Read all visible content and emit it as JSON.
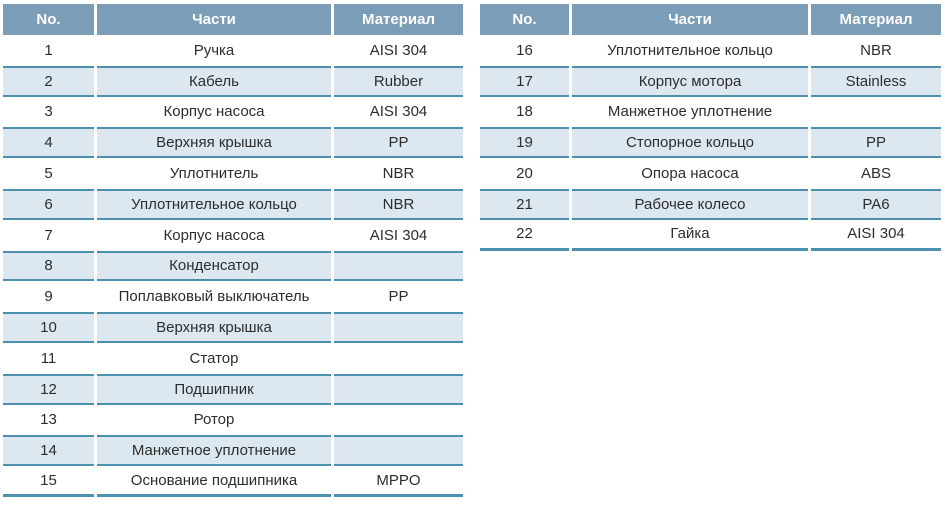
{
  "colors": {
    "header_bg": "#7C9DB8",
    "header_text": "#FFFFFF",
    "row_alt_bg": "#DDE7EF",
    "line": "#4D8FAF",
    "text": "#2D2D2D"
  },
  "tables": [
    {
      "name": "parts-table-left",
      "headers": {
        "no": "No.",
        "part": "Части",
        "material": "Материал"
      },
      "rows": [
        {
          "no": "1",
          "part": "Ручка",
          "material": "AISI 304"
        },
        {
          "no": "2",
          "part": "Кабель",
          "material": "Rubber"
        },
        {
          "no": "3",
          "part": "Корпус насоса",
          "material": "AISI 304"
        },
        {
          "no": "4",
          "part": "Верхняя крышка",
          "material": "PP"
        },
        {
          "no": "5",
          "part": "Уплотнитель",
          "material": "NBR"
        },
        {
          "no": "6",
          "part": "Уплотнительное кольцо",
          "material": "NBR"
        },
        {
          "no": "7",
          "part": "Корпус насоса",
          "material": "AISI 304"
        },
        {
          "no": "8",
          "part": "Конденсатор",
          "material": ""
        },
        {
          "no": "9",
          "part": "Поплавковый выключатель",
          "material": "PP"
        },
        {
          "no": "10",
          "part": "Верхняя крышка",
          "material": ""
        },
        {
          "no": "11",
          "part": "Статор",
          "material": ""
        },
        {
          "no": "12",
          "part": "Подшипник",
          "material": ""
        },
        {
          "no": "13",
          "part": "Ротор",
          "material": ""
        },
        {
          "no": "14",
          "part": "Манжетное уплотнение",
          "material": ""
        },
        {
          "no": "15",
          "part": "Основание подшипника",
          "material": "MPPO"
        }
      ]
    },
    {
      "name": "parts-table-right",
      "headers": {
        "no": "No.",
        "part": "Части",
        "material": "Материал"
      },
      "rows": [
        {
          "no": "16",
          "part": "Уплотнительное кольцо",
          "material": "NBR"
        },
        {
          "no": "17",
          "part": "Корпус мотора",
          "material": "Stainless"
        },
        {
          "no": "18",
          "part": "Манжетное уплотнение",
          "material": ""
        },
        {
          "no": "19",
          "part": "Стопорное кольцо",
          "material": "PP"
        },
        {
          "no": "20",
          "part": "Опора насоса",
          "material": "ABS"
        },
        {
          "no": "21",
          "part": "Рабочее колесо",
          "material": "PA6"
        },
        {
          "no": "22",
          "part": "Гайка",
          "material": "AISI 304"
        }
      ]
    }
  ]
}
